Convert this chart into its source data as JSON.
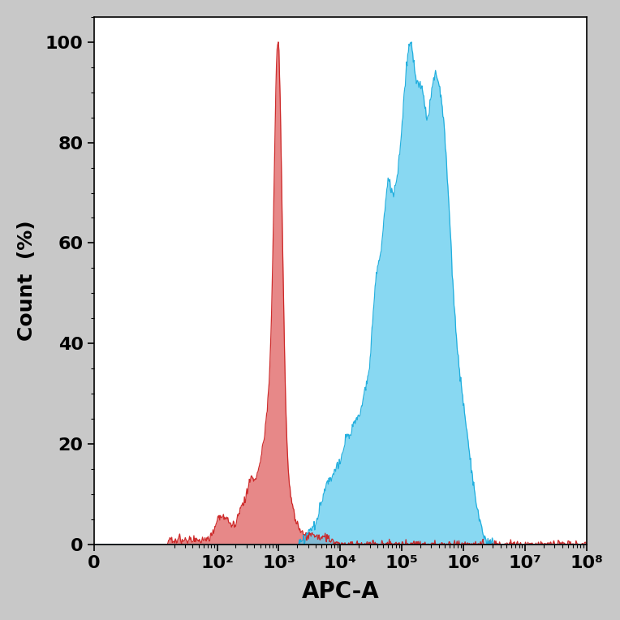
{
  "xlabel": "APC-A",
  "ylabel": "Count  (%)",
  "xlim": [
    0,
    8
  ],
  "ylim": [
    0,
    105
  ],
  "yticks": [
    0,
    20,
    40,
    60,
    80,
    100
  ],
  "xtick_labels": [
    "0",
    "10²",
    "10³",
    "10⁴",
    "10⁵",
    "10⁶",
    "10⁷",
    "10⁸"
  ],
  "xtick_positions": [
    0,
    2,
    3,
    4,
    5,
    6,
    7,
    8
  ],
  "red_fill_color": "#E06060",
  "red_line_color": "#CC2222",
  "blue_fill_color": "#60CCEE",
  "blue_line_color": "#1AACDD",
  "background_color": "#FFFFFF",
  "figure_bg": "#C8C8C8",
  "xlabel_fontsize": 20,
  "ylabel_fontsize": 18,
  "tick_fontsize": 16
}
